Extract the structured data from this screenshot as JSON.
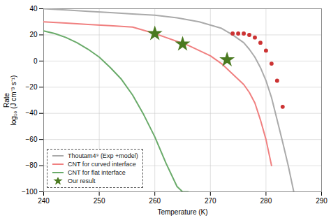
{
  "chart_data": {
    "type": "line",
    "xlabel": "Temperature (K)",
    "ylabel": "Rate\nlog₁₀ (J cm⁻³ s⁻¹)",
    "xlim": [
      240,
      290
    ],
    "ylim": [
      -100,
      40
    ],
    "xticks": [
      240,
      250,
      260,
      270,
      280,
      290
    ],
    "yticks": [
      -100,
      -80,
      -60,
      -40,
      -20,
      0,
      20,
      40
    ],
    "grid": true,
    "legend": "lower left",
    "series": [
      {
        "name": "Thoutam4⁹ (Exp +model)",
        "type": "line",
        "color": "#aaaaaa",
        "x": [
          240,
          244,
          248,
          252,
          256,
          260,
          264,
          268,
          272,
          274,
          276,
          277,
          278,
          279,
          280,
          281,
          282,
          283,
          284,
          285
        ],
        "values": [
          40,
          39,
          38,
          37,
          36,
          35,
          33,
          30,
          25,
          20,
          14,
          9,
          3,
          -5,
          -15,
          -28,
          -45,
          -62,
          -80,
          -100
        ]
      },
      {
        "type": "scatter",
        "marker": "circle",
        "color": "#cc3333",
        "x": [
          274,
          275,
          276,
          277,
          278,
          279,
          280,
          281,
          282,
          283
        ],
        "values": [
          21,
          21,
          21,
          20,
          18,
          14,
          8,
          -2,
          -15,
          -35
        ]
      },
      {
        "name": "CNT for curved interface",
        "type": "line",
        "color": "#f08080",
        "x": [
          240,
          244,
          248,
          252,
          256,
          260,
          262,
          264,
          266,
          268,
          270,
          272,
          274,
          276,
          277,
          278,
          279,
          280,
          281
        ],
        "values": [
          30,
          29,
          28,
          27,
          26,
          21,
          18,
          15,
          12,
          8,
          4,
          -2,
          -10,
          -18,
          -24,
          -32,
          -45,
          -60,
          -80
        ]
      },
      {
        "name": "CNT for flat interface",
        "type": "line",
        "color": "#6aab6a",
        "x": [
          240,
          242,
          244,
          246,
          248,
          250,
          252,
          254,
          256,
          258,
          260,
          262,
          264,
          265,
          266
        ],
        "values": [
          23,
          21,
          18,
          14,
          9,
          3,
          -5,
          -14,
          -26,
          -41,
          -58,
          -78,
          -96,
          -100,
          -100
        ]
      },
      {
        "name": "Our result",
        "type": "scatter",
        "marker": "star",
        "color": "#4a7a20",
        "x": [
          260,
          265,
          273
        ],
        "values": [
          21,
          13,
          1
        ]
      }
    ]
  }
}
